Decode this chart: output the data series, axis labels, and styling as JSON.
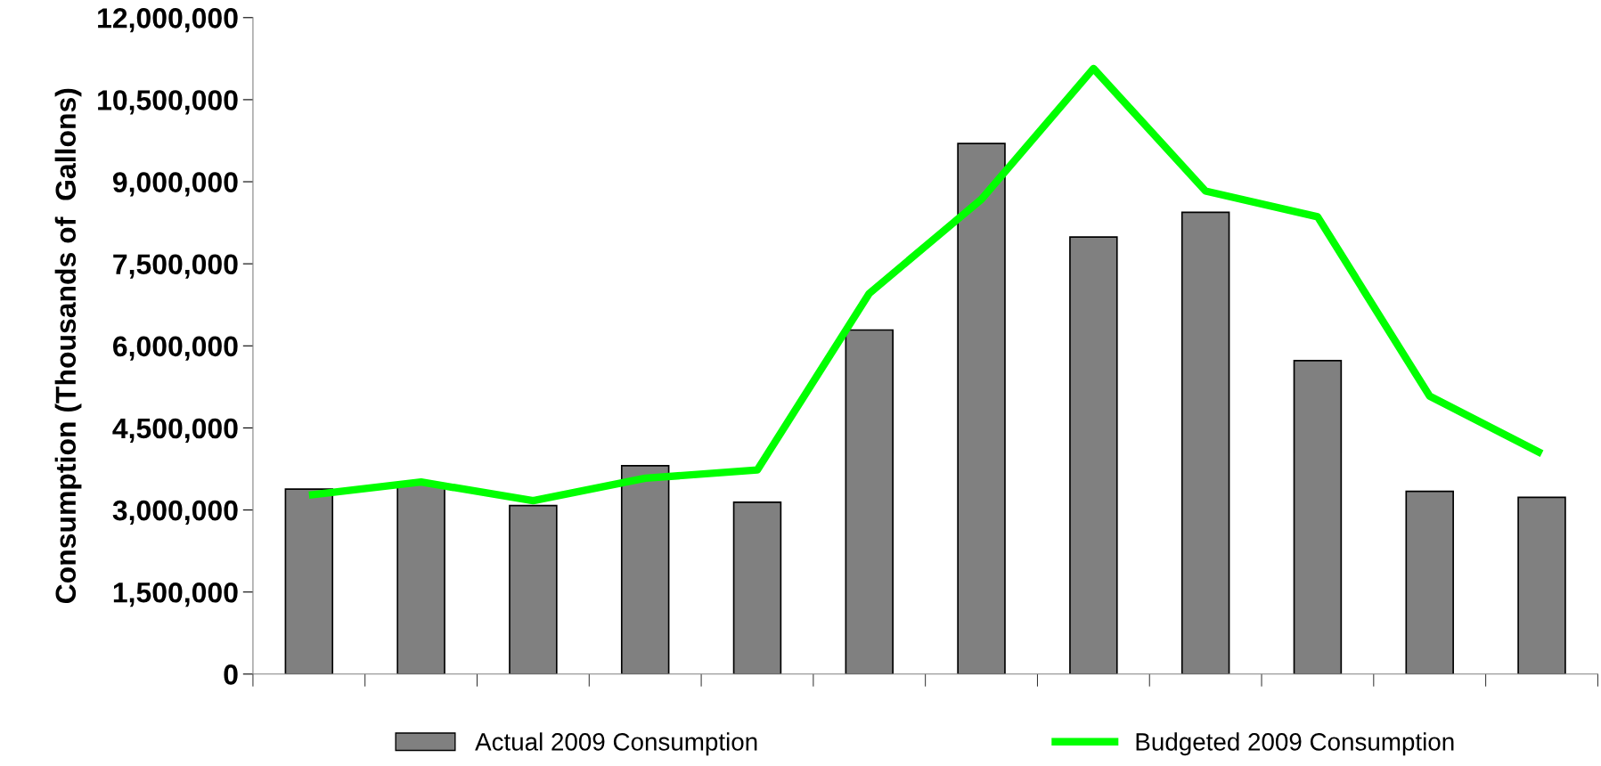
{
  "chart_data": {
    "type": "bar",
    "ylabel": "Consumption (Thousands of  Gallons)",
    "categories": [
      null,
      null,
      null,
      null,
      null,
      null,
      null,
      null,
      null,
      null,
      null,
      null
    ],
    "series": [
      {
        "name": "Actual 2009 Consumption",
        "color": "#808080",
        "values": [
          3380000,
          3480000,
          3080000,
          3810000,
          3140000,
          6290000,
          9700000,
          7990000,
          8440000,
          5730000,
          3340000,
          3230000
        ]
      },
      {
        "name": "Budgeted 2009 Consumption",
        "type": "line",
        "color": "#00ff00",
        "values": [
          3270000,
          3510000,
          3170000,
          3580000,
          3730000,
          6960000,
          8680000,
          11070000,
          8830000,
          8360000,
          5080000,
          4030000
        ]
      }
    ],
    "ylim": [
      0,
      12000000
    ],
    "yticks": [
      {
        "value": 0,
        "label": "0"
      },
      {
        "value": 1500000,
        "label": "1,500,000"
      },
      {
        "value": 3000000,
        "label": "3,000,000"
      },
      {
        "value": 4500000,
        "label": "4,500,000"
      },
      {
        "value": 6000000,
        "label": "6,000,000"
      },
      {
        "value": 7500000,
        "label": "7,500,000"
      },
      {
        "value": 9000000,
        "label": "9,000,000"
      },
      {
        "value": 10500000,
        "label": "10,500,000"
      },
      {
        "value": 12000000,
        "label": "12,000,000"
      }
    ],
    "grid": false,
    "legend": "bottom",
    "marker": "none",
    "line_style": "solid"
  }
}
